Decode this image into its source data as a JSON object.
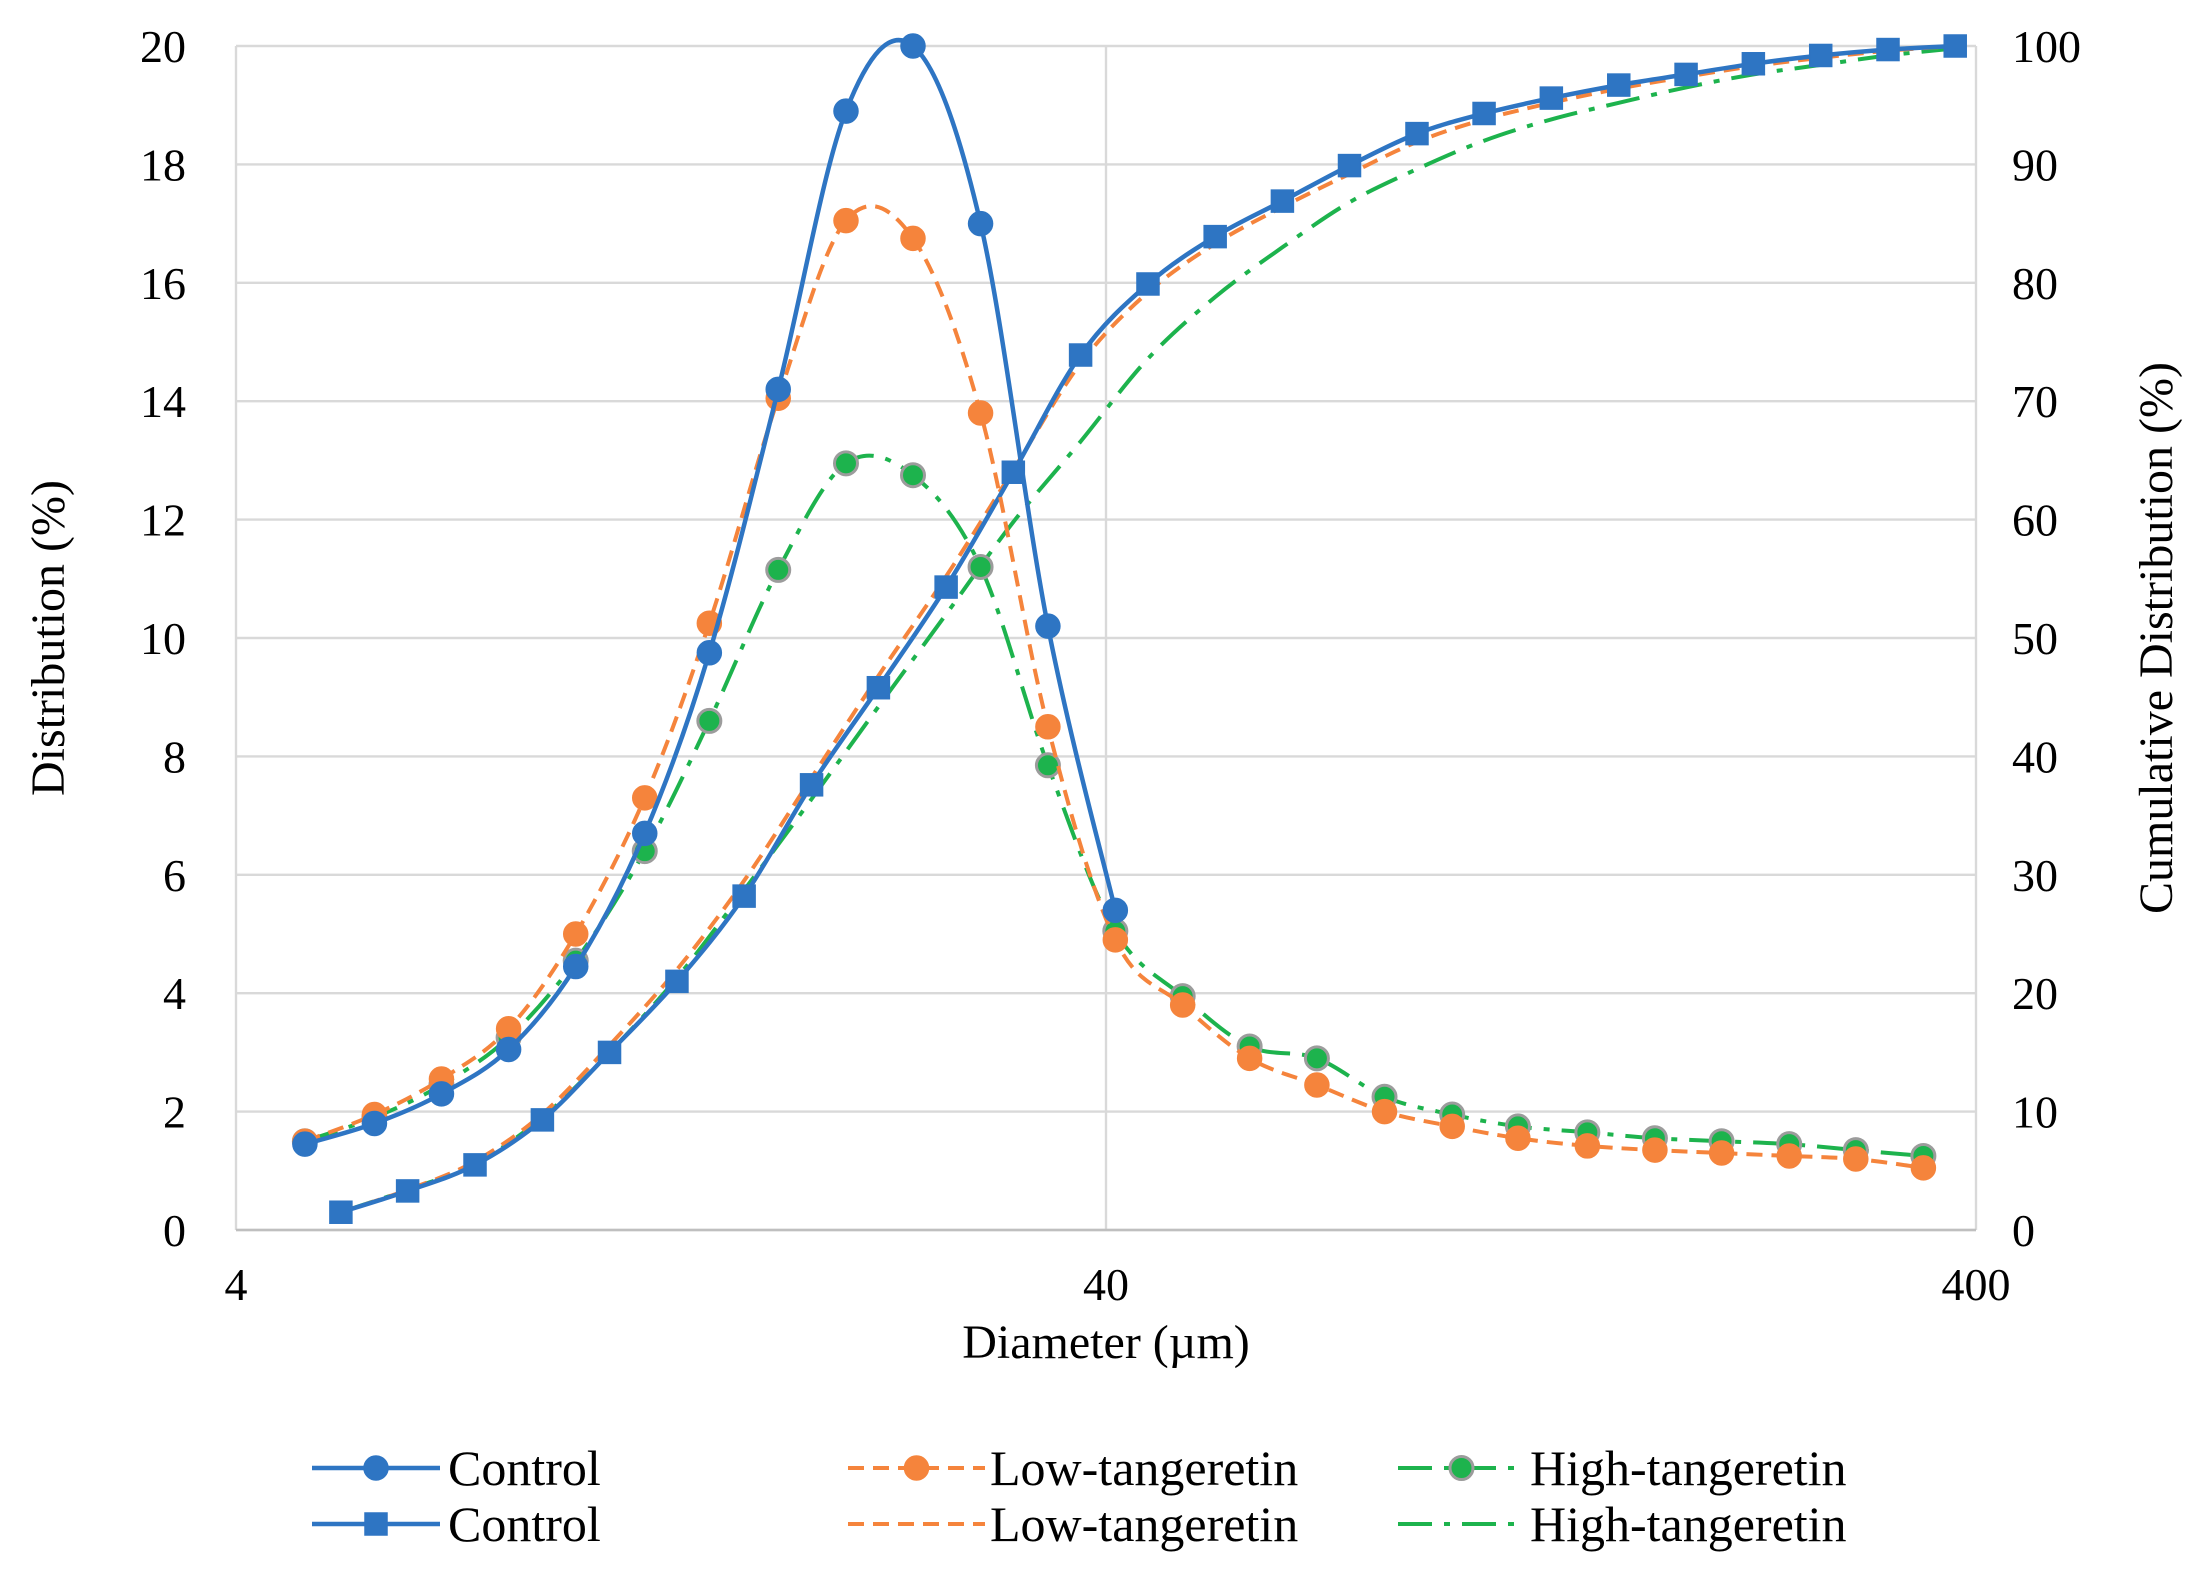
{
  "chart_data": {
    "type": "line",
    "title": "",
    "xlabel": "Diameter (µm)",
    "ylabel": "Distribution (%)",
    "y2label": "Cumulative Distribution (%)",
    "x_scale": "log",
    "xlim": [
      4,
      400
    ],
    "ylim": [
      0,
      20
    ],
    "y2lim": [
      0,
      100
    ],
    "x_ticks": [
      "4",
      "40",
      "400"
    ],
    "y_ticks": [
      "0",
      "2",
      "4",
      "6",
      "8",
      "10",
      "12",
      "14",
      "16",
      "18",
      "20"
    ],
    "y2_ticks": [
      "0",
      "10",
      "20",
      "30",
      "40",
      "50",
      "60",
      "70",
      "80",
      "90",
      "100"
    ],
    "grid": true,
    "legend_position": "bottom",
    "series": [
      {
        "name": "Control",
        "axis": "left",
        "color": "#2e75c3",
        "dash": "solid",
        "marker": "circle",
        "x": [
          4.8,
          5.77,
          6.89,
          8.23,
          9.83,
          11.8,
          14.0,
          16.8,
          20.1,
          24.0,
          28.7,
          34.3,
          41.0
        ],
        "y": [
          1.45,
          1.8,
          2.3,
          3.05,
          4.45,
          6.7,
          9.75,
          14.2,
          18.9,
          20.0,
          17.0,
          10.2,
          5.4
        ]
      },
      {
        "name": "Low-tangeretin",
        "axis": "left",
        "color": "#f5843c",
        "dash": "dashed",
        "marker": "circle",
        "x": [
          4.8,
          5.77,
          6.89,
          8.23,
          9.83,
          11.8,
          14.0,
          16.8,
          20.1,
          24.0,
          28.7,
          34.3,
          41.0,
          49.0,
          58.5,
          69.9,
          83.6,
          100,
          119,
          143,
          171,
          204,
          244,
          291,
          348
        ],
        "y": [
          1.5,
          1.95,
          2.55,
          3.4,
          5.0,
          7.3,
          10.25,
          14.05,
          17.05,
          16.75,
          13.8,
          8.5,
          4.9,
          3.8,
          2.9,
          2.45,
          2.0,
          1.75,
          1.55,
          1.42,
          1.35,
          1.3,
          1.25,
          1.2,
          1.05
        ]
      },
      {
        "name": "High-tangeretin",
        "axis": "left",
        "color": "#1db34d",
        "dash": "dashdot",
        "marker": "circle-gray-edge",
        "x": [
          4.8,
          5.77,
          6.89,
          8.23,
          9.83,
          11.8,
          14.0,
          16.8,
          20.1,
          24.0,
          28.7,
          34.3,
          41.0,
          49.0,
          58.5,
          69.9,
          83.6,
          100,
          119,
          143,
          171,
          204,
          244,
          291,
          348
        ],
        "y": [
          1.5,
          1.9,
          2.45,
          3.25,
          4.55,
          6.4,
          8.6,
          11.15,
          12.95,
          12.75,
          11.2,
          7.85,
          5.05,
          3.95,
          3.1,
          2.9,
          2.25,
          1.95,
          1.75,
          1.65,
          1.55,
          1.5,
          1.45,
          1.35,
          1.25
        ]
      },
      {
        "name": "Control",
        "axis": "right",
        "color": "#2e75c3",
        "dash": "solid",
        "marker": "square",
        "x": [
          5.28,
          6.3,
          7.53,
          9.0,
          10.75,
          12.85,
          15.35,
          18.35,
          21.9,
          26.2,
          31.3,
          37.4,
          44.7,
          53.4,
          63.8,
          76.2,
          91.1,
          108.8,
          130,
          155.4,
          185.7,
          221.9,
          265.2,
          316.9,
          378.6
        ],
        "y": [
          1.5,
          3.3,
          5.5,
          9.3,
          15.0,
          21.0,
          28.2,
          37.6,
          45.8,
          54.3,
          64.0,
          73.9,
          79.9,
          83.9,
          86.9,
          89.9,
          92.6,
          94.3,
          95.6,
          96.7,
          97.6,
          98.5,
          99.2,
          99.7,
          100.0
        ]
      },
      {
        "name": "Low-tangeretin",
        "axis": "right",
        "color": "#f5843c",
        "dash": "dashed",
        "marker": "none",
        "x": [
          5.28,
          6.3,
          7.53,
          9.0,
          10.75,
          12.85,
          15.35,
          18.35,
          21.9,
          26.2,
          31.3,
          37.4,
          44.7,
          53.4,
          63.8,
          76.2,
          91.1,
          108.8,
          130,
          155.4,
          185.7,
          221.9,
          265.2,
          316.9,
          378.6
        ],
        "y": [
          1.5,
          3.4,
          5.8,
          9.8,
          15.6,
          22.0,
          29.5,
          38.2,
          46.8,
          55.2,
          64.2,
          73.2,
          79.2,
          83.3,
          86.4,
          89.2,
          91.9,
          93.8,
          95.2,
          96.4,
          97.4,
          98.3,
          99.0,
          99.6,
          100.0
        ]
      },
      {
        "name": "High-tangeretin",
        "axis": "right",
        "color": "#1db34d",
        "dash": "dashdot",
        "marker": "none",
        "x": [
          5.28,
          6.3,
          7.53,
          9.0,
          10.75,
          12.85,
          15.35,
          18.35,
          21.9,
          26.2,
          31.3,
          37.4,
          44.7,
          53.4,
          63.8,
          76.2,
          91.1,
          108.8,
          130,
          155.4,
          185.7,
          221.9,
          265.2,
          316.9,
          378.6
        ],
        "y": [
          1.5,
          3.4,
          5.6,
          9.5,
          15.0,
          21.3,
          28.7,
          36.4,
          44.2,
          52.0,
          59.8,
          66.6,
          73.6,
          78.8,
          83.0,
          86.8,
          89.6,
          92.0,
          93.8,
          95.2,
          96.5,
          97.6,
          98.4,
          99.2,
          99.8
        ]
      }
    ]
  }
}
